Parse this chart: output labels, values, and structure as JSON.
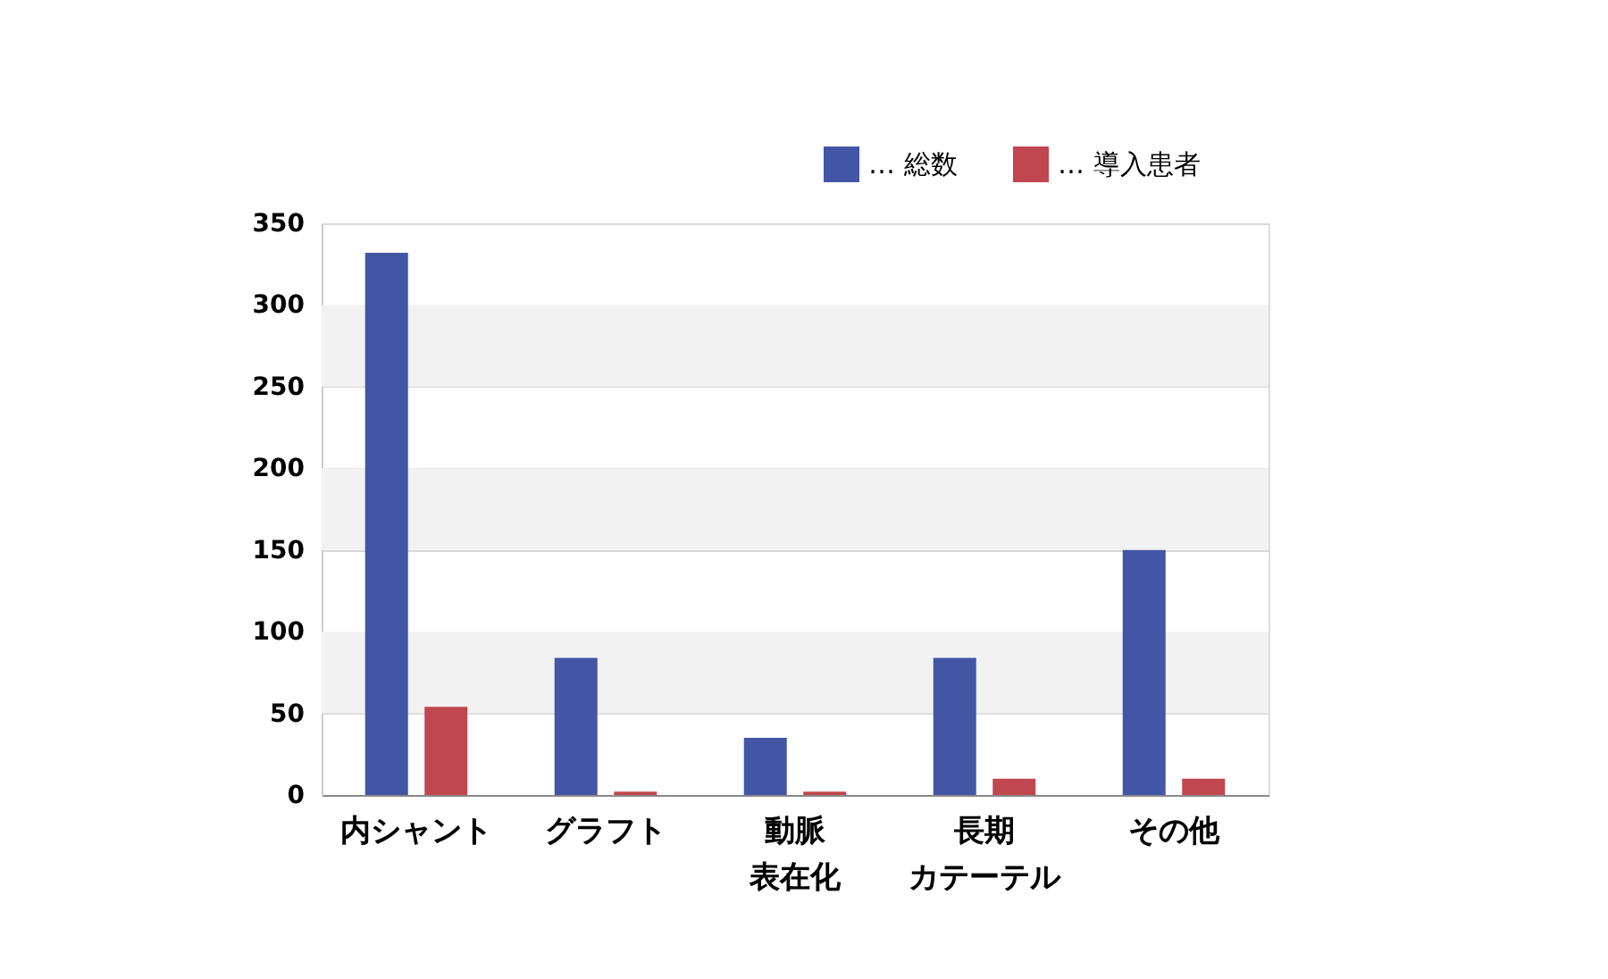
{
  "chart_data": {
    "type": "bar",
    "categories": [
      "内シャント",
      "グラフト",
      "動脈表在化",
      "長期カテーテル",
      "その他"
    ],
    "series": [
      {
        "name": "… 総数",
        "color": "#4355a5",
        "values": [
          332,
          84,
          35,
          84,
          150
        ]
      },
      {
        "name": "… 導入患者",
        "color": "#c0474f",
        "values": [
          54,
          2,
          2,
          10,
          10
        ]
      }
    ],
    "ylim": [
      0,
      350
    ],
    "yticks": [
      0,
      50,
      100,
      150,
      200,
      250,
      300,
      350
    ],
    "bands": [
      {
        "axis": "y",
        "from": 50,
        "to": 100,
        "color": "#f2f2f2"
      },
      {
        "axis": "y",
        "from": 150,
        "to": 200,
        "color": "#f2f2f2"
      },
      {
        "axis": "y",
        "from": 250,
        "to": 300,
        "color": "#f2f2f2"
      }
    ],
    "grid": true,
    "legend": "top right"
  }
}
